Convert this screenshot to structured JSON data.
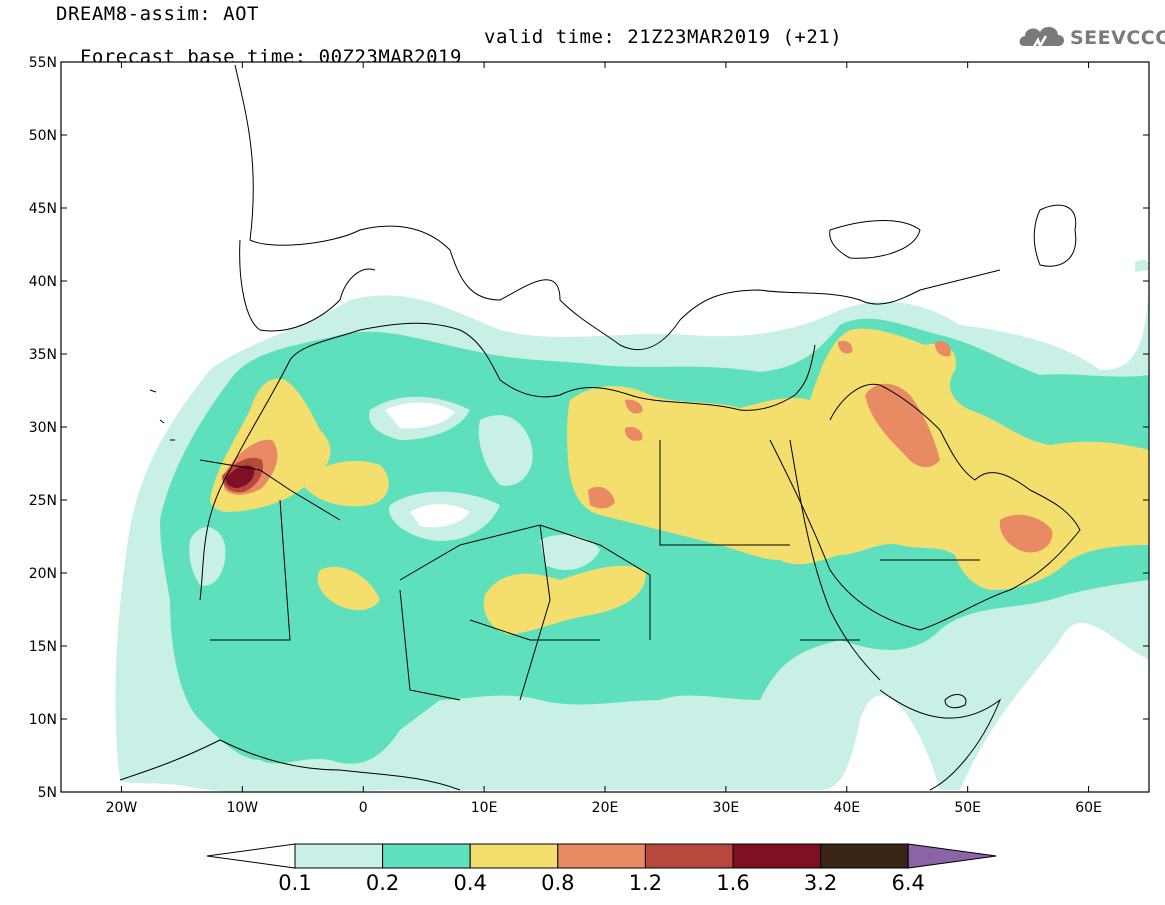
{
  "header": {
    "title_line1": "DREAM8-assim: AOT",
    "title_line2": "Forecast base time: 00Z23MAR2019",
    "valid_time": "valid time: 21Z23MAR2019 (+21)"
  },
  "logo": {
    "text": "SEEVCCC",
    "color": "#7a7a7a"
  },
  "map": {
    "lon_range": [
      -25,
      65
    ],
    "lat_range": [
      5,
      55
    ],
    "lat_ticks": [
      "5N",
      "10N",
      "15N",
      "20N",
      "25N",
      "30N",
      "35N",
      "40N",
      "45N",
      "50N",
      "55N"
    ],
    "lon_ticks": [
      "20W",
      "10W",
      "0",
      "10E",
      "20E",
      "30E",
      "40E",
      "50E",
      "60E"
    ],
    "variable": "AOT"
  },
  "colorbar": {
    "labels": [
      "0.1",
      "0.2",
      "0.4",
      "0.8",
      "1.2",
      "1.6",
      "3.2",
      "6.4"
    ],
    "colors": [
      "#ffffff",
      "#c8f0e6",
      "#5ee0bd",
      "#f4df6e",
      "#e88a64",
      "#b8473e",
      "#7e0f24",
      "#3a2414",
      "#8a64a6"
    ]
  }
}
